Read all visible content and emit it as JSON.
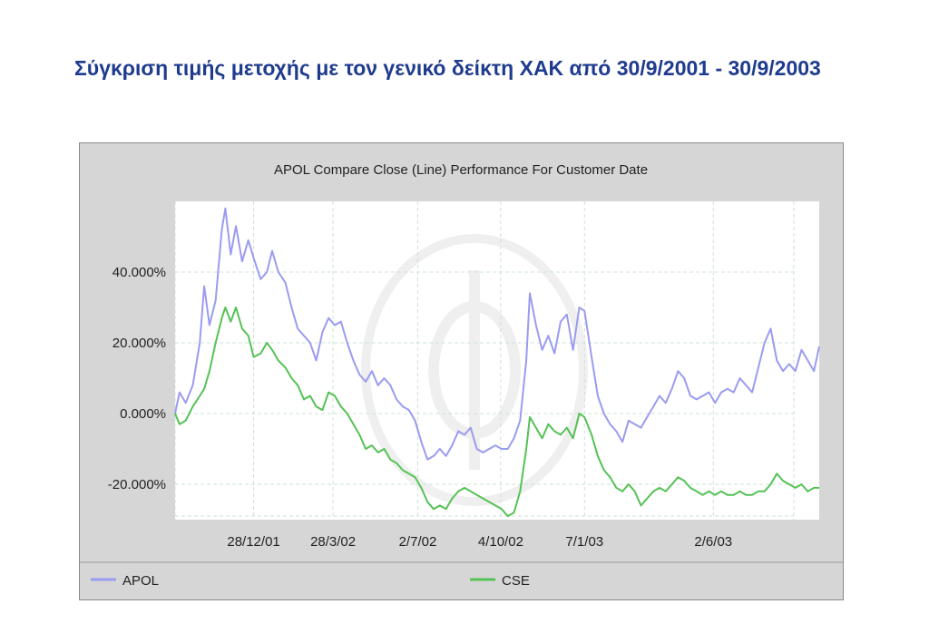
{
  "page": {
    "title": "Σύγκριση τιμής μετοχής με τον γενικό δείκτη ΧΑΚ από 30/9/2001 - 30/9/2003"
  },
  "chart_data": {
    "type": "line",
    "title": "APOL Compare Close (Line) Performance For Customer Date",
    "xlabel": "",
    "ylabel": "",
    "ylim": [
      -30,
      60
    ],
    "xlim": [
      "2001-09-30",
      "2003-09-30"
    ],
    "y_ticks": [
      {
        "value": 40,
        "label": "40.000%"
      },
      {
        "value": 20,
        "label": "20.000%"
      },
      {
        "value": 0,
        "label": "0.000%"
      },
      {
        "value": -20,
        "label": "-20.000%"
      }
    ],
    "x_ticks": [
      {
        "date": "2001-12-28",
        "label": "28/12/01"
      },
      {
        "date": "2002-03-28",
        "label": "28/3/02"
      },
      {
        "date": "2002-07-02",
        "label": "2/7/02"
      },
      {
        "date": "2002-10-04",
        "label": "4/10/02"
      },
      {
        "date": "2003-01-07",
        "label": "7/1/03"
      },
      {
        "date": "2003-06-02",
        "label": "2/6/03"
      }
    ],
    "grid": true,
    "legend_position": "bottom",
    "series": [
      {
        "name": "APOL",
        "color": "#9b9bf0",
        "points": [
          [
            "2001-09-30",
            0
          ],
          [
            "2001-10-05",
            6
          ],
          [
            "2001-10-12",
            3
          ],
          [
            "2001-10-20",
            8
          ],
          [
            "2001-10-28",
            20
          ],
          [
            "2001-11-02",
            36
          ],
          [
            "2001-11-08",
            25
          ],
          [
            "2001-11-15",
            32
          ],
          [
            "2001-11-22",
            52
          ],
          [
            "2001-11-26",
            58
          ],
          [
            "2001-12-02",
            45
          ],
          [
            "2001-12-08",
            53
          ],
          [
            "2001-12-15",
            43
          ],
          [
            "2001-12-22",
            49
          ],
          [
            "2001-12-28",
            44
          ],
          [
            "2002-01-05",
            38
          ],
          [
            "2002-01-12",
            40
          ],
          [
            "2002-01-18",
            46
          ],
          [
            "2002-01-25",
            40
          ],
          [
            "2002-02-02",
            37
          ],
          [
            "2002-02-09",
            30
          ],
          [
            "2002-02-16",
            24
          ],
          [
            "2002-02-23",
            22
          ],
          [
            "2002-03-02",
            20
          ],
          [
            "2002-03-09",
            15
          ],
          [
            "2002-03-16",
            23
          ],
          [
            "2002-03-23",
            27
          ],
          [
            "2002-03-30",
            25
          ],
          [
            "2002-04-06",
            26
          ],
          [
            "2002-04-13",
            20
          ],
          [
            "2002-04-20",
            15
          ],
          [
            "2002-04-27",
            11
          ],
          [
            "2002-05-04",
            9
          ],
          [
            "2002-05-11",
            12
          ],
          [
            "2002-05-18",
            8
          ],
          [
            "2002-05-25",
            10
          ],
          [
            "2002-06-01",
            8
          ],
          [
            "2002-06-08",
            4
          ],
          [
            "2002-06-15",
            2
          ],
          [
            "2002-06-22",
            1
          ],
          [
            "2002-06-29",
            -2
          ],
          [
            "2002-07-06",
            -8
          ],
          [
            "2002-07-13",
            -13
          ],
          [
            "2002-07-20",
            -12
          ],
          [
            "2002-07-27",
            -10
          ],
          [
            "2002-08-03",
            -12
          ],
          [
            "2002-08-10",
            -9
          ],
          [
            "2002-08-17",
            -5
          ],
          [
            "2002-08-24",
            -6
          ],
          [
            "2002-08-31",
            -4
          ],
          [
            "2002-09-07",
            -10
          ],
          [
            "2002-09-14",
            -11
          ],
          [
            "2002-09-21",
            -10
          ],
          [
            "2002-09-28",
            -9
          ],
          [
            "2002-10-05",
            -10
          ],
          [
            "2002-10-12",
            -10
          ],
          [
            "2002-10-19",
            -7
          ],
          [
            "2002-10-26",
            -2
          ],
          [
            "2002-11-02",
            15
          ],
          [
            "2002-11-06",
            34
          ],
          [
            "2002-11-13",
            25
          ],
          [
            "2002-11-20",
            18
          ],
          [
            "2002-11-27",
            22
          ],
          [
            "2002-12-04",
            17
          ],
          [
            "2002-12-11",
            26
          ],
          [
            "2002-12-18",
            28
          ],
          [
            "2002-12-25",
            18
          ],
          [
            "2003-01-01",
            30
          ],
          [
            "2003-01-07",
            29
          ],
          [
            "2003-01-15",
            16
          ],
          [
            "2003-01-22",
            5
          ],
          [
            "2003-01-29",
            0
          ],
          [
            "2003-02-05",
            -3
          ],
          [
            "2003-02-12",
            -5
          ],
          [
            "2003-02-19",
            -8
          ],
          [
            "2003-02-26",
            -2
          ],
          [
            "2003-03-05",
            -3
          ],
          [
            "2003-03-12",
            -4
          ],
          [
            "2003-03-19",
            -1
          ],
          [
            "2003-03-26",
            2
          ],
          [
            "2003-04-02",
            5
          ],
          [
            "2003-04-09",
            3
          ],
          [
            "2003-04-16",
            7
          ],
          [
            "2003-04-23",
            12
          ],
          [
            "2003-04-30",
            10
          ],
          [
            "2003-05-07",
            5
          ],
          [
            "2003-05-14",
            4
          ],
          [
            "2003-05-21",
            5
          ],
          [
            "2003-05-28",
            6
          ],
          [
            "2003-06-04",
            3
          ],
          [
            "2003-06-11",
            6
          ],
          [
            "2003-06-18",
            7
          ],
          [
            "2003-06-25",
            6
          ],
          [
            "2003-07-02",
            10
          ],
          [
            "2003-07-09",
            8
          ],
          [
            "2003-07-16",
            6
          ],
          [
            "2003-07-23",
            13
          ],
          [
            "2003-07-30",
            20
          ],
          [
            "2003-08-06",
            24
          ],
          [
            "2003-08-13",
            15
          ],
          [
            "2003-08-20",
            12
          ],
          [
            "2003-08-27",
            14
          ],
          [
            "2003-09-03",
            12
          ],
          [
            "2003-09-10",
            18
          ],
          [
            "2003-09-17",
            15
          ],
          [
            "2003-09-24",
            12
          ],
          [
            "2003-09-30",
            19
          ]
        ]
      },
      {
        "name": "CSE",
        "color": "#55c255",
        "points": [
          [
            "2001-09-30",
            0
          ],
          [
            "2001-10-05",
            -3
          ],
          [
            "2001-10-12",
            -2
          ],
          [
            "2001-10-20",
            2
          ],
          [
            "2001-10-28",
            5
          ],
          [
            "2001-11-02",
            7
          ],
          [
            "2001-11-08",
            12
          ],
          [
            "2001-11-15",
            20
          ],
          [
            "2001-11-22",
            27
          ],
          [
            "2001-11-26",
            30
          ],
          [
            "2001-12-02",
            26
          ],
          [
            "2001-12-08",
            30
          ],
          [
            "2001-12-15",
            24
          ],
          [
            "2001-12-22",
            22
          ],
          [
            "2001-12-28",
            16
          ],
          [
            "2002-01-05",
            17
          ],
          [
            "2002-01-12",
            20
          ],
          [
            "2002-01-18",
            18
          ],
          [
            "2002-01-25",
            15
          ],
          [
            "2002-02-02",
            13
          ],
          [
            "2002-02-09",
            10
          ],
          [
            "2002-02-16",
            8
          ],
          [
            "2002-02-23",
            4
          ],
          [
            "2002-03-02",
            5
          ],
          [
            "2002-03-09",
            2
          ],
          [
            "2002-03-16",
            1
          ],
          [
            "2002-03-23",
            6
          ],
          [
            "2002-03-30",
            5
          ],
          [
            "2002-04-06",
            2
          ],
          [
            "2002-04-13",
            0
          ],
          [
            "2002-04-20",
            -3
          ],
          [
            "2002-04-27",
            -6
          ],
          [
            "2002-05-04",
            -10
          ],
          [
            "2002-05-11",
            -9
          ],
          [
            "2002-05-18",
            -11
          ],
          [
            "2002-05-25",
            -10
          ],
          [
            "2002-06-01",
            -13
          ],
          [
            "2002-06-08",
            -14
          ],
          [
            "2002-06-15",
            -16
          ],
          [
            "2002-06-22",
            -17
          ],
          [
            "2002-06-29",
            -18
          ],
          [
            "2002-07-06",
            -21
          ],
          [
            "2002-07-13",
            -25
          ],
          [
            "2002-07-20",
            -27
          ],
          [
            "2002-07-27",
            -26
          ],
          [
            "2002-08-03",
            -27
          ],
          [
            "2002-08-10",
            -24
          ],
          [
            "2002-08-17",
            -22
          ],
          [
            "2002-08-24",
            -21
          ],
          [
            "2002-08-31",
            -22
          ],
          [
            "2002-09-07",
            -23
          ],
          [
            "2002-09-14",
            -24
          ],
          [
            "2002-09-21",
            -25
          ],
          [
            "2002-09-28",
            -26
          ],
          [
            "2002-10-05",
            -27
          ],
          [
            "2002-10-12",
            -29
          ],
          [
            "2002-10-19",
            -28
          ],
          [
            "2002-10-26",
            -22
          ],
          [
            "2002-11-02",
            -10
          ],
          [
            "2002-11-06",
            -1
          ],
          [
            "2002-11-13",
            -4
          ],
          [
            "2002-11-20",
            -7
          ],
          [
            "2002-11-27",
            -3
          ],
          [
            "2002-12-04",
            -5
          ],
          [
            "2002-12-11",
            -6
          ],
          [
            "2002-12-18",
            -4
          ],
          [
            "2002-12-25",
            -7
          ],
          [
            "2003-01-01",
            0
          ],
          [
            "2003-01-07",
            -1
          ],
          [
            "2003-01-15",
            -6
          ],
          [
            "2003-01-22",
            -12
          ],
          [
            "2003-01-29",
            -16
          ],
          [
            "2003-02-05",
            -18
          ],
          [
            "2003-02-12",
            -21
          ],
          [
            "2003-02-19",
            -22
          ],
          [
            "2003-02-26",
            -20
          ],
          [
            "2003-03-05",
            -22
          ],
          [
            "2003-03-12",
            -26
          ],
          [
            "2003-03-19",
            -24
          ],
          [
            "2003-03-26",
            -22
          ],
          [
            "2003-04-02",
            -21
          ],
          [
            "2003-04-09",
            -22
          ],
          [
            "2003-04-16",
            -20
          ],
          [
            "2003-04-23",
            -18
          ],
          [
            "2003-04-30",
            -19
          ],
          [
            "2003-05-07",
            -21
          ],
          [
            "2003-05-14",
            -22
          ],
          [
            "2003-05-21",
            -23
          ],
          [
            "2003-05-28",
            -22
          ],
          [
            "2003-06-04",
            -23
          ],
          [
            "2003-06-11",
            -22
          ],
          [
            "2003-06-18",
            -23
          ],
          [
            "2003-06-25",
            -23
          ],
          [
            "2003-07-02",
            -22
          ],
          [
            "2003-07-09",
            -23
          ],
          [
            "2003-07-16",
            -23
          ],
          [
            "2003-07-23",
            -22
          ],
          [
            "2003-07-30",
            -22
          ],
          [
            "2003-08-06",
            -20
          ],
          [
            "2003-08-13",
            -17
          ],
          [
            "2003-08-20",
            -19
          ],
          [
            "2003-08-27",
            -20
          ],
          [
            "2003-09-03",
            -21
          ],
          [
            "2003-09-10",
            -20
          ],
          [
            "2003-09-17",
            -22
          ],
          [
            "2003-09-24",
            -21
          ],
          [
            "2003-09-30",
            -21
          ]
        ]
      }
    ]
  }
}
